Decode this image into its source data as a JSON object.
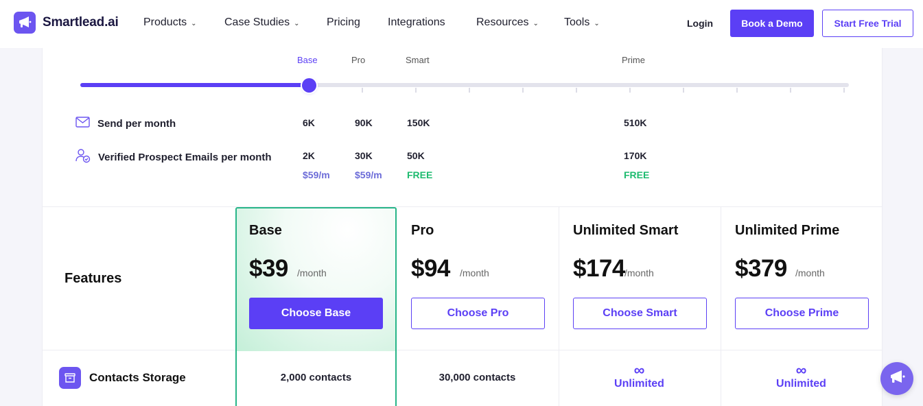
{
  "brand": {
    "name": "Smartlead.ai",
    "logo_icon": "megaphone-icon",
    "accent": "#5b3ff5",
    "green": "#27b588"
  },
  "nav": {
    "items": [
      {
        "label": "Products",
        "dropdown": true
      },
      {
        "label": "Case Studies",
        "dropdown": true
      },
      {
        "label": "Pricing",
        "dropdown": false
      },
      {
        "label": "Integrations",
        "dropdown": false
      },
      {
        "label": "Resources",
        "dropdown": true
      },
      {
        "label": "Tools",
        "dropdown": true
      }
    ],
    "login": "Login",
    "book_demo": "Book a Demo",
    "start_trial": "Start Free Trial"
  },
  "slider": {
    "tiers": [
      "Base",
      "Pro",
      "Smart",
      "Prime"
    ],
    "active": "Base",
    "value_fraction": 0.29
  },
  "usage": {
    "send_label": "Send per month",
    "send_values": [
      "6K",
      "90K",
      "150K",
      "510K"
    ],
    "verified_label": "Verified Prospect Emails per month",
    "verified_values": [
      "2K",
      "30K",
      "50K",
      "170K"
    ],
    "verified_prices": [
      "$59/m",
      "$59/m",
      "FREE",
      "FREE"
    ]
  },
  "features": {
    "title": "Features",
    "plans": [
      {
        "name": "Base",
        "price": "$39",
        "period": "/month",
        "cta": "Choose Base"
      },
      {
        "name": "Pro",
        "price": "$94",
        "period": "/month",
        "cta": "Choose Pro"
      },
      {
        "name": "Unlimited Smart",
        "price": "$174",
        "period": "/month",
        "cta": "Choose Smart"
      },
      {
        "name": "Unlimited Prime",
        "price": "$379",
        "period": "/month",
        "cta": "Choose Prime"
      }
    ],
    "contacts_storage": {
      "label": "Contacts Storage",
      "icon": "archive-box-icon",
      "values": [
        "2,000 contacts",
        "30,000 contacts",
        "Unlimited",
        "Unlimited"
      ]
    }
  },
  "chat": {
    "icon": "chat-megaphone-icon"
  }
}
